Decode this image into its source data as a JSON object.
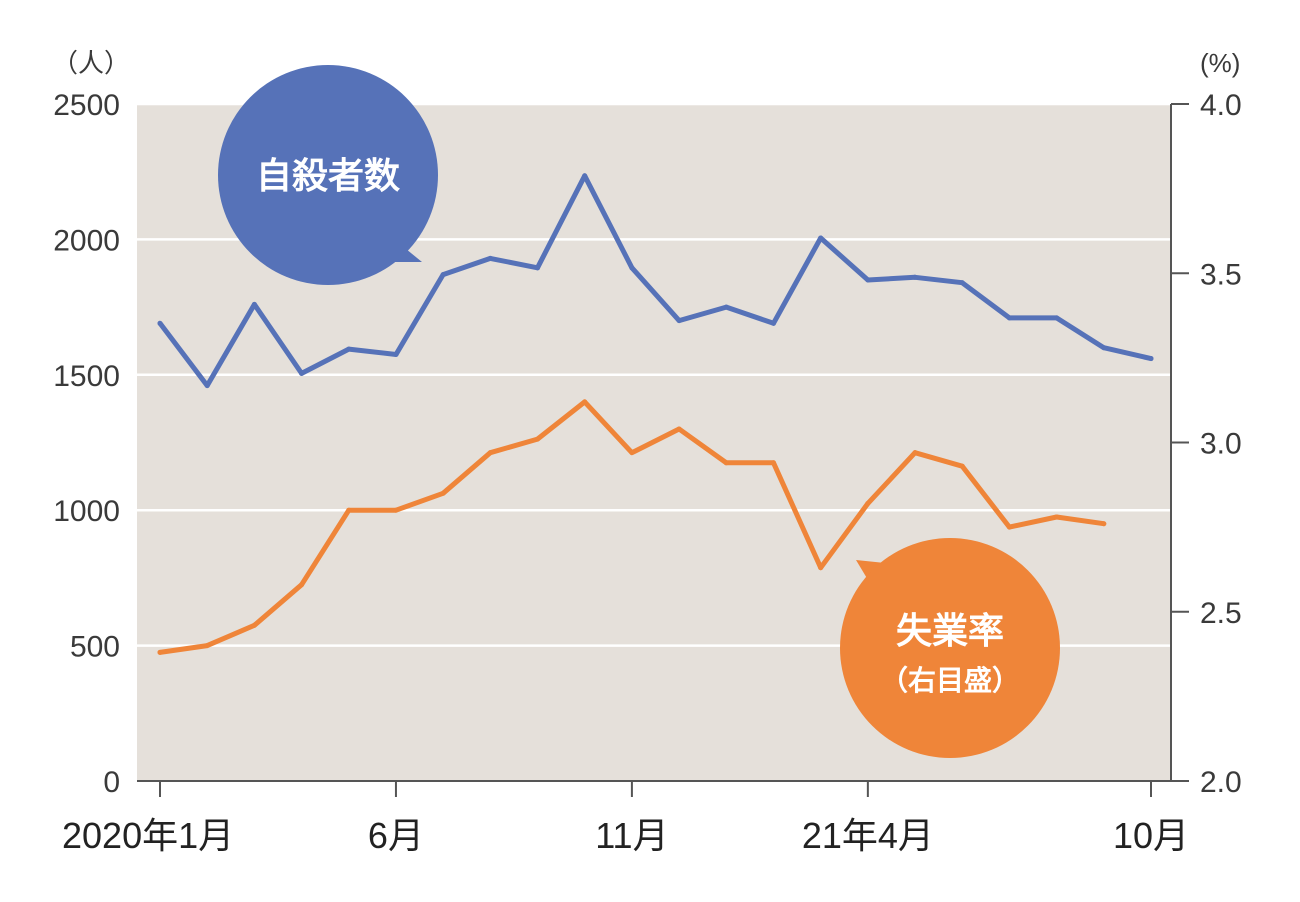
{
  "chart_data": {
    "type": "line",
    "x": [
      "2020-01",
      "2020-02",
      "2020-03",
      "2020-04",
      "2020-05",
      "2020-06",
      "2020-07",
      "2020-08",
      "2020-09",
      "2020-10",
      "2020-11",
      "2020-12",
      "2021-01",
      "2021-02",
      "2021-03",
      "2021-04",
      "2021-05",
      "2021-06",
      "2021-07",
      "2021-08",
      "2021-09",
      "2021-10"
    ],
    "x_tick_labels": [
      {
        "x": "2020-01",
        "label": "2020年1月"
      },
      {
        "x": "2020-06",
        "label": "6月"
      },
      {
        "x": "2020-11",
        "label": "11月"
      },
      {
        "x": "2021-04",
        "label": "21年4月"
      },
      {
        "x": "2021-10",
        "label": "10月"
      }
    ],
    "y_left": {
      "unit": "（人）",
      "ylim": [
        0,
        2500
      ],
      "ticks": [
        "0",
        "500",
        "1000",
        "1500",
        "2000",
        "2500"
      ]
    },
    "y_right": {
      "unit": "(%)",
      "ylim": [
        2.0,
        4.0
      ],
      "ticks": [
        "2.0",
        "2.5",
        "3.0",
        "3.5",
        "4.0"
      ]
    },
    "series": [
      {
        "name": "自殺者数",
        "axis": "left",
        "color": "#5672b8",
        "values": [
          1690,
          1460,
          1760,
          1505,
          1595,
          1575,
          1870,
          1930,
          1895,
          2235,
          1895,
          1700,
          1750,
          1690,
          2005,
          1850,
          1860,
          1840,
          1710,
          1710,
          1600,
          1560
        ]
      },
      {
        "name": "失業率",
        "label_sub": "（右目盛）",
        "axis": "right",
        "color": "#ef8539",
        "values": [
          2.38,
          2.4,
          2.46,
          2.58,
          2.8,
          2.8,
          2.85,
          2.97,
          3.01,
          3.12,
          2.97,
          3.04,
          2.94,
          2.94,
          2.63,
          2.82,
          2.97,
          2.93,
          2.75,
          2.78,
          2.76,
          null
        ]
      }
    ],
    "grid": true,
    "plot_background": "#e5e0da",
    "grid_color": "#ffffff"
  }
}
